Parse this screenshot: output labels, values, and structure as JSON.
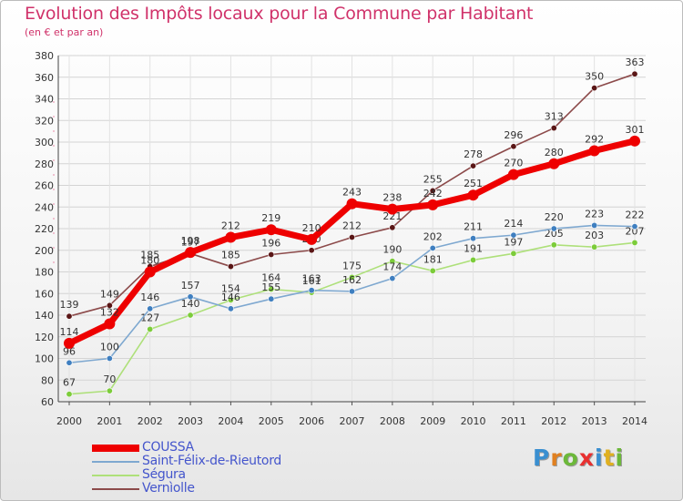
{
  "header": {
    "title": "Evolution des Impôts locaux pour la Commune par Habitant",
    "subtitle": "(en € et par an)"
  },
  "chart_data": {
    "type": "line",
    "x": [
      2000,
      2001,
      2002,
      2003,
      2004,
      2005,
      2006,
      2007,
      2008,
      2009,
      2010,
      2011,
      2012,
      2013,
      2014
    ],
    "ylim": [
      60,
      380
    ],
    "yticks": [
      60,
      80,
      100,
      120,
      140,
      160,
      180,
      200,
      220,
      240,
      260,
      280,
      300,
      320,
      340,
      360,
      380
    ],
    "grid": true,
    "legend_position": "bottom-left",
    "series": [
      {
        "name": "Vernìolle",
        "color": "#8c4a4a",
        "marker_color": "#5a1616",
        "values": [
          139,
          149,
          185,
          197,
          185,
          196,
          200,
          212,
          221,
          255,
          278,
          296,
          313,
          350,
          363
        ]
      },
      {
        "name": "Ségura",
        "color": "#aee07a",
        "marker_color": "#7ccc3a",
        "values": [
          67,
          70,
          127,
          140,
          154,
          164,
          161,
          175,
          190,
          181,
          191,
          197,
          205,
          203,
          207
        ]
      },
      {
        "name": "Saint-Félix-de-Rieutord",
        "color": "#7ea8d0",
        "marker_color": "#3f7fc0",
        "values": [
          96,
          100,
          146,
          157,
          146,
          155,
          163,
          162,
          174,
          202,
          211,
          214,
          220,
          223,
          222
        ]
      },
      {
        "name": "COUSSA",
        "color": "#ee0000",
        "marker_color": "#ee0000",
        "values": [
          114,
          132,
          180,
          198,
          212,
          219,
          210,
          243,
          238,
          242,
          251,
          270,
          280,
          292,
          301
        ]
      }
    ]
  },
  "legend": {
    "items": [
      "COUSSA",
      "Saint-Félix-de-Rieutord",
      "Ségura",
      "Vernìolle"
    ],
    "colors": [
      "#ee0000",
      "#7ea8d0",
      "#aee07a",
      "#8c4a4a"
    ]
  },
  "logo": {
    "letters": [
      "P",
      "r",
      "o",
      "x",
      "i",
      "t",
      "i"
    ],
    "colors": [
      "#3a8fd0",
      "#e08020",
      "#6cb83a",
      "#e83030",
      "#3a8fd0",
      "#e0b020",
      "#6cb83a"
    ]
  }
}
